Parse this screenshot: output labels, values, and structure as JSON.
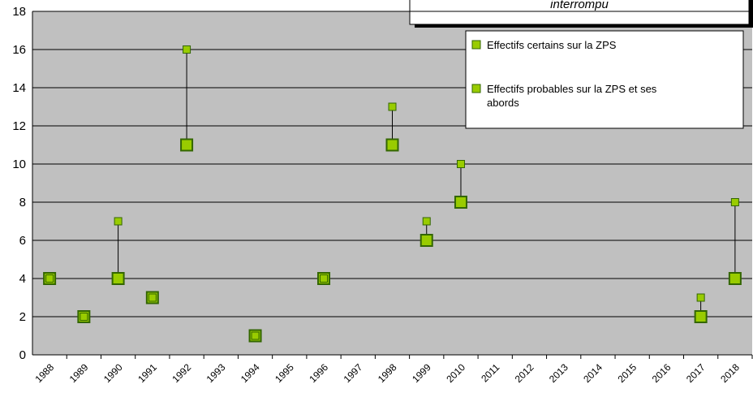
{
  "chart_data": {
    "type": "scatter",
    "title": "interrompu",
    "categories": [
      "1988",
      "1989",
      "1990",
      "1991",
      "1992",
      "1993",
      "1994",
      "1995",
      "1996",
      "1997",
      "1998",
      "1999",
      "2010",
      "2011",
      "2012",
      "2013",
      "2014",
      "2015",
      "2016",
      "2017",
      "2018"
    ],
    "series": [
      {
        "name": "Effectifs certains sur la ZPS",
        "color": "#99cc00",
        "edge": "#336600",
        "values": [
          4,
          2,
          4,
          3,
          11,
          null,
          1,
          null,
          4,
          null,
          11,
          6,
          8,
          null,
          null,
          null,
          null,
          null,
          null,
          2,
          4
        ]
      },
      {
        "name": "Effectifs probables sur la ZPS et ses abords",
        "color": "#99cc00",
        "edge": "#336600",
        "values": [
          4,
          2,
          7,
          3,
          16,
          null,
          1,
          null,
          4,
          null,
          13,
          7,
          10,
          null,
          null,
          null,
          null,
          null,
          null,
          3,
          8
        ]
      }
    ],
    "ylim": [
      0,
      18
    ],
    "yticks": [
      0,
      2,
      4,
      6,
      8,
      10,
      12,
      14,
      16,
      18
    ],
    "grid": true,
    "legend": "upper right"
  }
}
